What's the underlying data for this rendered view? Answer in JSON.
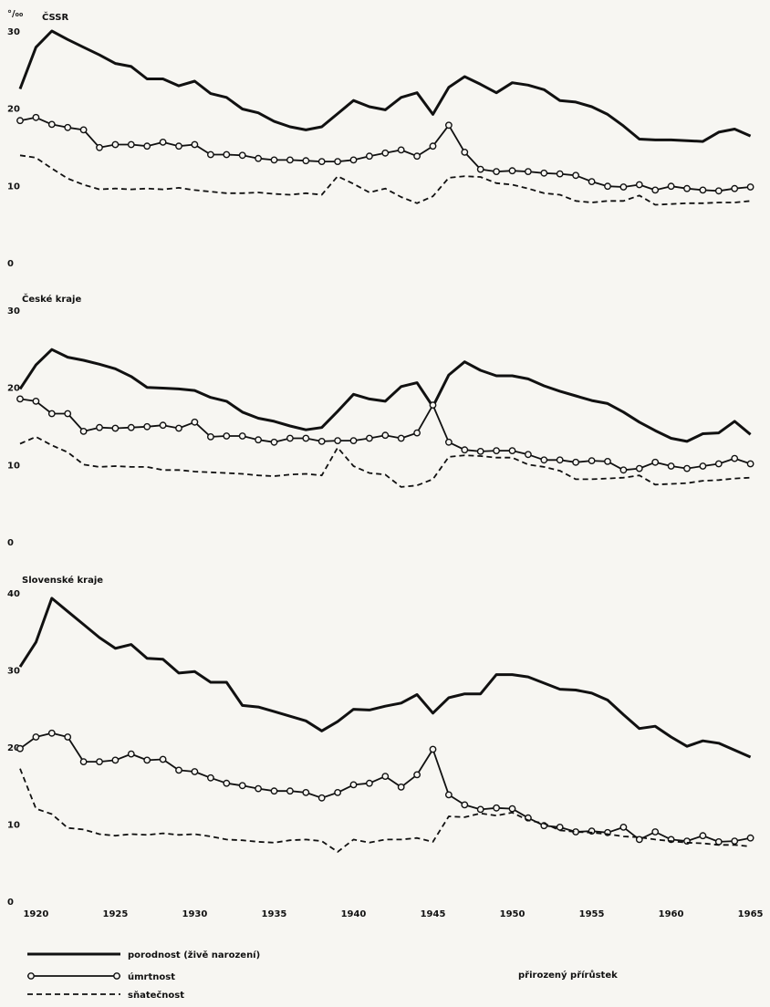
{
  "unit_label": "°/₀₀",
  "panels_meta": {
    "x_ticks": [
      1920,
      1925,
      1930,
      1935,
      1940,
      1945,
      1950,
      1955,
      1960,
      1965
    ]
  },
  "legend": {
    "items": [
      {
        "label": "porodnost (živě narození)",
        "style": "solid"
      },
      {
        "label": "úmrtnost",
        "style": "dotted-line"
      },
      {
        "label": "sňatečnost",
        "style": "dashed"
      }
    ],
    "extra_label": "přirozený přírůstek"
  },
  "chart_data": [
    {
      "type": "line",
      "title": "ČSSR",
      "ylabel": "°/₀₀",
      "ylim": [
        0,
        30
      ],
      "yticks": [
        0,
        10,
        20,
        30
      ],
      "xlim": [
        1919,
        1966
      ],
      "x": [
        1919,
        1920,
        1921,
        1922,
        1923,
        1924,
        1925,
        1926,
        1927,
        1928,
        1929,
        1930,
        1931,
        1932,
        1933,
        1934,
        1935,
        1936,
        1937,
        1938,
        1939,
        1940,
        1941,
        1942,
        1943,
        1944,
        1945,
        1946,
        1947,
        1948,
        1949,
        1950,
        1951,
        1952,
        1953,
        1954,
        1955,
        1956,
        1957,
        1958,
        1959,
        1960,
        1961,
        1962,
        1963,
        1964,
        1965
      ],
      "series": [
        {
          "name": "porodnost (živě narození)",
          "style": "solid",
          "values": [
            22.5,
            27.9,
            30.0,
            28.9,
            27.9,
            26.9,
            25.8,
            25.4,
            23.8,
            23.8,
            22.9,
            23.5,
            21.9,
            21.4,
            19.9,
            19.4,
            18.3,
            17.6,
            17.2,
            17.6,
            19.3,
            21.0,
            20.2,
            19.8,
            21.4,
            22.0,
            19.2,
            22.7,
            24.1,
            23.1,
            22.0,
            23.3,
            23.0,
            22.4,
            21.0,
            20.8,
            20.2,
            19.2,
            17.7,
            16.0,
            15.9,
            15.9,
            15.8,
            15.7,
            16.9,
            17.3,
            16.4
          ]
        },
        {
          "name": "úmrtnost",
          "style": "dotted-line",
          "values": [
            18.4,
            18.8,
            17.9,
            17.5,
            17.2,
            14.9,
            15.3,
            15.3,
            15.1,
            15.6,
            15.1,
            15.3,
            14.0,
            14.0,
            13.9,
            13.5,
            13.3,
            13.3,
            13.2,
            13.1,
            13.1,
            13.3,
            13.8,
            14.2,
            14.6,
            13.8,
            15.1,
            17.8,
            14.3,
            12.1,
            11.8,
            11.9,
            11.8,
            11.6,
            11.5,
            11.3,
            10.5,
            9.9,
            9.8,
            10.1,
            9.4,
            9.9,
            9.6,
            9.4,
            9.3,
            9.6,
            9.8
          ]
        },
        {
          "name": "sňatečnost",
          "style": "dashed",
          "values": [
            13.9,
            13.6,
            12.2,
            10.9,
            10.1,
            9.5,
            9.6,
            9.5,
            9.6,
            9.5,
            9.7,
            9.4,
            9.2,
            9.0,
            9.0,
            9.1,
            8.9,
            8.8,
            9.0,
            8.8,
            11.2,
            10.2,
            9.1,
            9.6,
            8.5,
            7.7,
            8.6,
            11.0,
            11.2,
            11.1,
            10.3,
            10.1,
            9.6,
            9.0,
            8.8,
            8.0,
            7.8,
            8.0,
            8.0,
            8.7,
            7.5,
            7.6,
            7.7,
            7.7,
            7.8,
            7.8,
            8.0
          ]
        }
      ]
    },
    {
      "type": "line",
      "title": "České kraje",
      "ylabel": "°/₀₀",
      "ylim": [
        0,
        30
      ],
      "yticks": [
        0,
        10,
        20,
        30
      ],
      "xlim": [
        1919,
        1966
      ],
      "x": [
        1919,
        1920,
        1921,
        1922,
        1923,
        1924,
        1925,
        1926,
        1927,
        1928,
        1929,
        1930,
        1931,
        1932,
        1933,
        1934,
        1935,
        1936,
        1937,
        1938,
        1939,
        1940,
        1941,
        1942,
        1943,
        1944,
        1945,
        1946,
        1947,
        1948,
        1949,
        1950,
        1951,
        1952,
        1953,
        1954,
        1955,
        1956,
        1957,
        1958,
        1959,
        1960,
        1961,
        1962,
        1963,
        1964,
        1965
      ],
      "series": [
        {
          "name": "porodnost (živě narození)",
          "style": "solid",
          "values": [
            19.8,
            22.9,
            24.9,
            23.9,
            23.5,
            23.0,
            22.4,
            21.4,
            20.0,
            19.9,
            19.8,
            19.6,
            18.7,
            18.2,
            16.8,
            16.0,
            15.6,
            15.0,
            14.5,
            14.8,
            16.9,
            19.1,
            18.5,
            18.2,
            20.1,
            20.6,
            17.5,
            21.6,
            23.3,
            22.2,
            21.5,
            21.5,
            21.1,
            20.2,
            19.5,
            18.9,
            18.3,
            17.9,
            16.8,
            15.5,
            14.4,
            13.4,
            13.0,
            14.0,
            14.1,
            15.6,
            13.9
          ]
        },
        {
          "name": "úmrtnost",
          "style": "dotted-line",
          "values": [
            18.5,
            18.2,
            16.6,
            16.6,
            14.3,
            14.8,
            14.7,
            14.8,
            14.9,
            15.1,
            14.7,
            15.5,
            13.6,
            13.7,
            13.7,
            13.2,
            12.9,
            13.4,
            13.4,
            13.0,
            13.1,
            13.1,
            13.4,
            13.8,
            13.4,
            14.1,
            17.7,
            12.9,
            11.9,
            11.7,
            11.8,
            11.8,
            11.3,
            10.6,
            10.6,
            10.3,
            10.5,
            10.4,
            9.3,
            9.5,
            10.3,
            9.8,
            9.5,
            9.8,
            10.1,
            10.8,
            10.1
          ]
        },
        {
          "name": "sňatečnost",
          "style": "dashed",
          "values": [
            12.7,
            13.6,
            12.5,
            11.6,
            10.0,
            9.7,
            9.8,
            9.7,
            9.7,
            9.3,
            9.3,
            9.1,
            9.0,
            8.9,
            8.8,
            8.6,
            8.5,
            8.7,
            8.8,
            8.6,
            12.2,
            9.8,
            8.9,
            8.7,
            7.1,
            7.3,
            8.1,
            11.0,
            11.2,
            11.1,
            10.9,
            10.9,
            10.0,
            9.7,
            9.2,
            8.1,
            8.1,
            8.2,
            8.3,
            8.6,
            7.4,
            7.5,
            7.6,
            7.9,
            8.0,
            8.2,
            8.3
          ]
        }
      ]
    },
    {
      "type": "line",
      "title": "Slovenské kraje",
      "ylabel": "°/₀₀",
      "ylim": [
        0,
        40
      ],
      "yticks": [
        0,
        10,
        20,
        30,
        40
      ],
      "xlim": [
        1919,
        1966
      ],
      "x": [
        1919,
        1920,
        1921,
        1922,
        1923,
        1924,
        1925,
        1926,
        1927,
        1928,
        1929,
        1930,
        1931,
        1932,
        1933,
        1934,
        1935,
        1936,
        1937,
        1938,
        1939,
        1940,
        1941,
        1942,
        1943,
        1944,
        1945,
        1946,
        1947,
        1948,
        1949,
        1950,
        1951,
        1952,
        1953,
        1954,
        1955,
        1956,
        1957,
        1958,
        1959,
        1960,
        1961,
        1962,
        1963,
        1964,
        1965
      ],
      "series": [
        {
          "name": "porodnost (živě narození)",
          "style": "solid",
          "values": [
            30.4,
            33.6,
            39.3,
            37.6,
            35.9,
            34.2,
            32.8,
            33.3,
            31.5,
            31.4,
            29.6,
            29.8,
            28.4,
            28.4,
            25.4,
            25.2,
            24.6,
            24.0,
            23.4,
            22.1,
            23.3,
            24.9,
            24.8,
            25.3,
            25.7,
            26.8,
            24.4,
            26.4,
            26.9,
            26.9,
            29.4,
            29.4,
            29.1,
            28.3,
            27.5,
            27.4,
            27.0,
            26.1,
            24.2,
            22.4,
            22.7,
            21.3,
            20.1,
            20.8,
            20.5,
            19.6,
            18.7
          ]
        },
        {
          "name": "úmrtnost",
          "style": "dotted-line",
          "values": [
            19.8,
            21.3,
            21.8,
            21.3,
            18.1,
            18.1,
            18.3,
            19.1,
            18.3,
            18.4,
            17.0,
            16.8,
            16.0,
            15.3,
            15.0,
            14.6,
            14.3,
            14.3,
            14.1,
            13.4,
            14.1,
            15.1,
            15.3,
            16.2,
            14.8,
            16.4,
            19.7,
            13.8,
            12.5,
            11.9,
            12.1,
            12.0,
            10.8,
            9.8,
            9.6,
            9.0,
            9.1,
            8.9,
            9.6,
            8.0,
            9.0,
            8.0,
            7.8,
            8.5,
            7.7,
            7.8,
            8.2
          ]
        },
        {
          "name": "sňatečnost",
          "style": "dashed",
          "values": [
            17.2,
            12.0,
            11.3,
            9.5,
            9.3,
            8.7,
            8.5,
            8.7,
            8.6,
            8.8,
            8.6,
            8.7,
            8.4,
            8.0,
            7.9,
            7.7,
            7.6,
            7.9,
            8.0,
            7.8,
            6.4,
            8.0,
            7.6,
            8.0,
            8.0,
            8.2,
            7.7,
            11.0,
            10.9,
            11.4,
            11.1,
            11.5,
            10.5,
            10.1,
            9.2,
            9.0,
            8.9,
            8.7,
            8.4,
            8.3,
            8.0,
            7.8,
            7.6,
            7.5,
            7.3,
            7.3,
            7.1
          ]
        }
      ]
    }
  ]
}
